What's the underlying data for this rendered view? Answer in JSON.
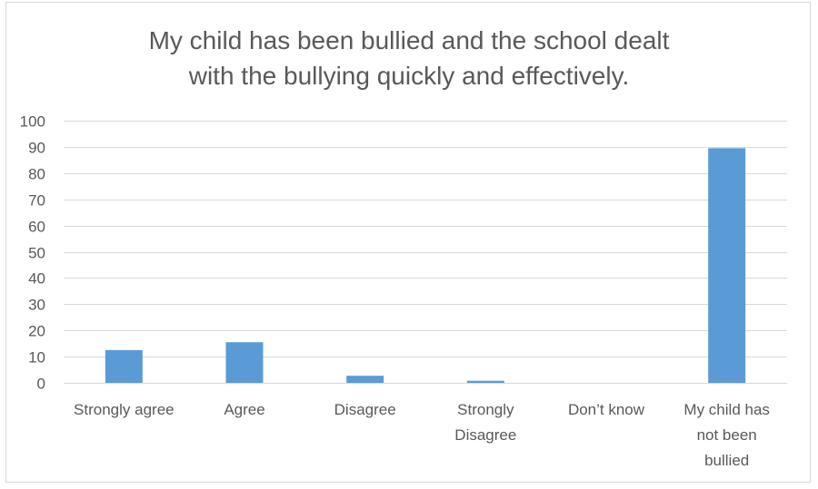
{
  "chart_data": {
    "type": "bar",
    "title_lines": [
      "My child has been bullied and the school dealt",
      "with the bullying quickly and effectively."
    ],
    "categories": [
      [
        "Strongly agree"
      ],
      [
        "Agree"
      ],
      [
        "Disagree"
      ],
      [
        "Strongly",
        "Disagree"
      ],
      [
        "Don’t know"
      ],
      [
        "My child has",
        "not been",
        "bullied"
      ]
    ],
    "values": [
      12.5,
      15.5,
      2.7,
      0.8,
      0,
      89.5
    ],
    "ylim": [
      0,
      100
    ],
    "yticks": [
      0,
      10,
      20,
      30,
      40,
      50,
      60,
      70,
      80,
      90,
      100
    ],
    "grid": true,
    "colors": {
      "bar": "#5b9bd5",
      "grid": "#d9d9d9",
      "text": "#595959"
    }
  }
}
